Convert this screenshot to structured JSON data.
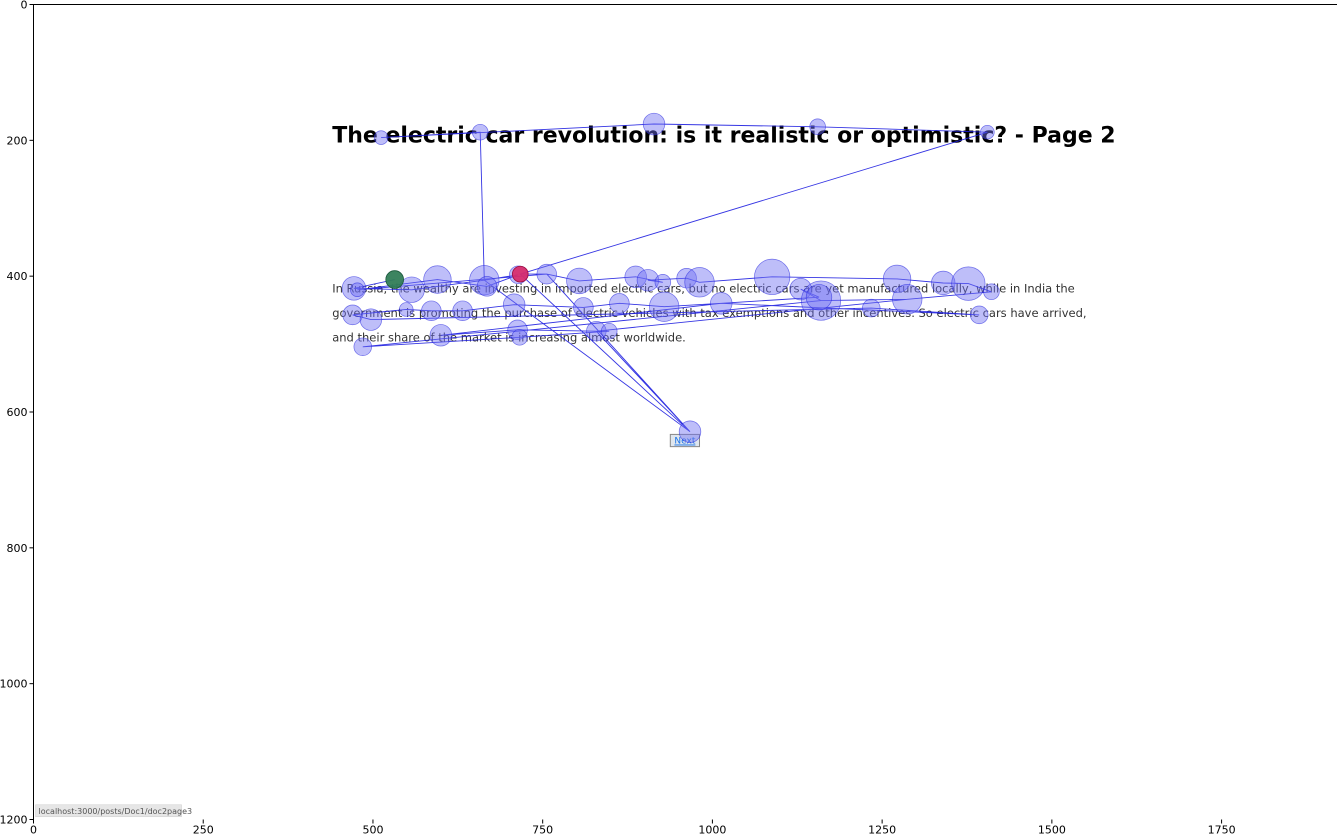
{
  "chart_data": {
    "type": "scatter",
    "xlim": [
      0,
      1920
    ],
    "ylim": [
      1200,
      0
    ],
    "x_ticks": [
      0,
      250,
      500,
      750,
      1000,
      1250,
      1500,
      1750
    ],
    "y_ticks": [
      0,
      200,
      400,
      600,
      800,
      1000,
      1200
    ],
    "grid": false,
    "colors": {
      "fixation_fill": "#6f6ff2",
      "fixation_stroke": "#2222dd",
      "scanpath_line": "#1f1fe0",
      "first_fixation": "#2e7d4f",
      "last_fixation": "#e0245e",
      "axis": "#000000"
    },
    "background_page": {
      "title": "The electric car revolution: is it realistic or optimistic? - Page 2",
      "title_pos": [
        440,
        203
      ],
      "body_lines": [
        "In Russia, the wealthy are investing in imported electric cars, but no electric cars are yet manufactured locally, while in India the",
        "government is promoting the purchase of electric vehicles with tax exemptions and other incentives. So electric cars have arrived,",
        "and their share of the market is increasing almost worldwide."
      ],
      "body_pos": [
        440,
        424
      ],
      "body_line_spacing": 36,
      "next_button": {
        "label": "Next",
        "x": 938,
        "y": 633,
        "w": 43,
        "h": 18
      },
      "status_url": "localhost:3000/posts/Doc1/doc2page3",
      "status_pos": [
        3,
        1196
      ]
    },
    "fixations": [
      {
        "x": 532,
        "y": 405,
        "r": 9
      },
      {
        "x": 472,
        "y": 418,
        "r": 12
      },
      {
        "x": 477,
        "y": 420,
        "r": 7
      },
      {
        "x": 557,
        "y": 420,
        "r": 13
      },
      {
        "x": 595,
        "y": 405,
        "r": 14
      },
      {
        "x": 664,
        "y": 406,
        "r": 15
      },
      {
        "x": 668,
        "y": 415,
        "r": 10
      },
      {
        "x": 714,
        "y": 398,
        "r": 9
      },
      {
        "x": 756,
        "y": 397,
        "r": 10
      },
      {
        "x": 804,
        "y": 407,
        "r": 13
      },
      {
        "x": 887,
        "y": 401,
        "r": 11
      },
      {
        "x": 905,
        "y": 406,
        "r": 11
      },
      {
        "x": 927,
        "y": 409,
        "r": 8
      },
      {
        "x": 962,
        "y": 403,
        "r": 10
      },
      {
        "x": 981,
        "y": 409,
        "r": 15
      },
      {
        "x": 1088,
        "y": 401,
        "r": 18
      },
      {
        "x": 1130,
        "y": 419,
        "r": 11
      },
      {
        "x": 1160,
        "y": 436,
        "r": 20
      },
      {
        "x": 1157,
        "y": 431,
        "r": 13
      },
      {
        "x": 1272,
        "y": 404,
        "r": 14
      },
      {
        "x": 1287,
        "y": 434,
        "r": 15
      },
      {
        "x": 1340,
        "y": 410,
        "r": 12
      },
      {
        "x": 1377,
        "y": 411,
        "r": 17
      },
      {
        "x": 1411,
        "y": 423,
        "r": 8
      },
      {
        "x": 1393,
        "y": 457,
        "r": 9
      },
      {
        "x": 1234,
        "y": 447,
        "r": 9
      },
      {
        "x": 1013,
        "y": 440,
        "r": 11
      },
      {
        "x": 929,
        "y": 445,
        "r": 15
      },
      {
        "x": 863,
        "y": 440,
        "r": 10
      },
      {
        "x": 810,
        "y": 446,
        "r": 10
      },
      {
        "x": 708,
        "y": 442,
        "r": 11
      },
      {
        "x": 632,
        "y": 451,
        "r": 10
      },
      {
        "x": 586,
        "y": 451,
        "r": 10
      },
      {
        "x": 549,
        "y": 449,
        "r": 7
      },
      {
        "x": 470,
        "y": 457,
        "r": 10
      },
      {
        "x": 497,
        "y": 464,
        "r": 11
      },
      {
        "x": 600,
        "y": 487,
        "r": 11
      },
      {
        "x": 713,
        "y": 479,
        "r": 10
      },
      {
        "x": 716,
        "y": 490,
        "r": 8
      },
      {
        "x": 829,
        "y": 481,
        "r": 10
      },
      {
        "x": 848,
        "y": 481,
        "r": 8
      },
      {
        "x": 485,
        "y": 504,
        "r": 9
      },
      {
        "x": 967,
        "y": 629,
        "r": 11
      },
      {
        "x": 512,
        "y": 196,
        "r": 7
      },
      {
        "x": 658,
        "y": 188,
        "r": 8
      },
      {
        "x": 914,
        "y": 176,
        "r": 11
      },
      {
        "x": 1155,
        "y": 180,
        "r": 8
      },
      {
        "x": 1405,
        "y": 188,
        "r": 7
      },
      {
        "x": 717,
        "y": 397,
        "r": 8
      }
    ],
    "first_fixation": {
      "x": 532,
      "y": 405,
      "r": 9
    },
    "last_fixation": {
      "x": 717,
      "y": 397,
      "r": 8
    },
    "scanpath": [
      [
        532,
        405
      ],
      [
        472,
        418
      ],
      [
        557,
        420
      ],
      [
        664,
        406
      ],
      [
        714,
        398
      ],
      [
        668,
        415
      ],
      [
        595,
        405
      ],
      [
        477,
        420
      ],
      [
        756,
        397
      ],
      [
        804,
        407
      ],
      [
        887,
        401
      ],
      [
        927,
        409
      ],
      [
        905,
        406
      ],
      [
        962,
        403
      ],
      [
        981,
        409
      ],
      [
        1088,
        401
      ],
      [
        1272,
        404
      ],
      [
        1340,
        410
      ],
      [
        1377,
        411
      ],
      [
        1411,
        423
      ],
      [
        1287,
        434
      ],
      [
        1160,
        436
      ],
      [
        1130,
        419
      ],
      [
        1157,
        431
      ],
      [
        1013,
        440
      ],
      [
        929,
        445
      ],
      [
        863,
        440
      ],
      [
        810,
        446
      ],
      [
        708,
        442
      ],
      [
        632,
        451
      ],
      [
        586,
        451
      ],
      [
        549,
        449
      ],
      [
        470,
        457
      ],
      [
        497,
        464
      ],
      [
        1234,
        447
      ],
      [
        1393,
        457
      ],
      [
        1013,
        440
      ],
      [
        600,
        487
      ],
      [
        713,
        479
      ],
      [
        829,
        481
      ],
      [
        848,
        481
      ],
      [
        716,
        490
      ],
      [
        485,
        504
      ],
      [
        1160,
        436
      ],
      [
        1287,
        434
      ],
      [
        829,
        481
      ],
      [
        967,
        629
      ],
      [
        756,
        397
      ],
      [
        717,
        397
      ],
      [
        967,
        629
      ],
      [
        664,
        406
      ],
      [
        658,
        188
      ],
      [
        512,
        196
      ],
      [
        914,
        176
      ],
      [
        1155,
        180
      ],
      [
        1405,
        188
      ],
      [
        1405,
        188
      ],
      [
        717,
        397
      ]
    ]
  }
}
